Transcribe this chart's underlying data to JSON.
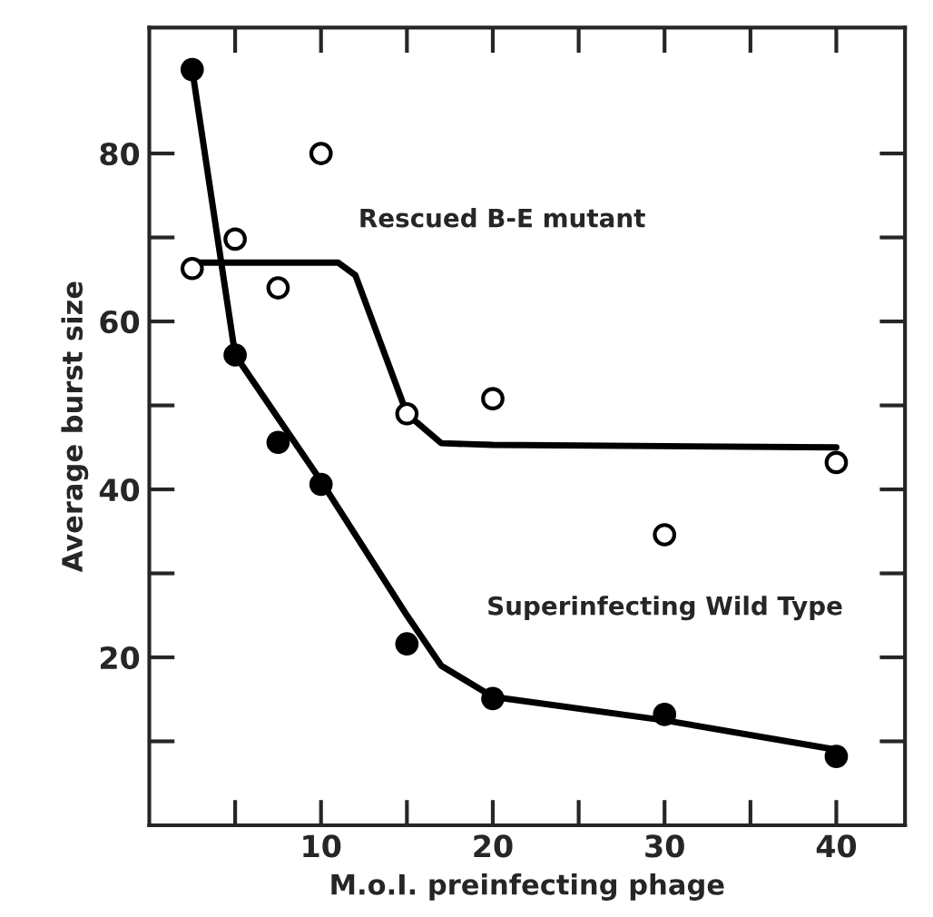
{
  "chart_data": {
    "type": "scatter",
    "xlabel": "M.o.I. preinfecting phage",
    "ylabel": "Average burst size",
    "xlim": [
      0,
      44
    ],
    "ylim": [
      0,
      95
    ],
    "xticks": [
      {
        "value": 5,
        "label": null
      },
      10,
      {
        "value": 15,
        "label": null
      },
      20,
      {
        "value": 25,
        "label": null
      },
      30,
      {
        "value": 35,
        "label": null
      },
      40
    ],
    "yticks": [
      {
        "value": 10,
        "label": null
      },
      20,
      {
        "value": 30,
        "label": null
      },
      40,
      {
        "value": 50,
        "label": null
      },
      60,
      {
        "value": 70,
        "label": null
      },
      80
    ],
    "grid": false,
    "legend": false,
    "series": [
      {
        "marker": "circle",
        "color": "#000000",
        "x": [
          2.5,
          5,
          7.5,
          10,
          15,
          20,
          30,
          40
        ],
        "values": [
          90,
          56,
          45.6,
          40.6,
          21.6,
          15.1,
          13.2,
          8.2
        ]
      },
      {
        "marker": "circle",
        "color": "#ffffff",
        "x": [
          2.5,
          5,
          7.5,
          10,
          15,
          20,
          30,
          40
        ],
        "values": [
          66.3,
          69.8,
          64,
          80,
          49,
          50.8,
          34.6,
          43.2
        ]
      },
      {
        "type": "line",
        "marker": "none",
        "name": "Superinfecting Wild Type",
        "color": "#000000",
        "x": [
          2.5,
          5,
          10,
          15,
          17,
          20,
          30,
          40
        ],
        "values": [
          90,
          56,
          41,
          25,
          19,
          15.3,
          12.5,
          9
        ]
      },
      {
        "type": "line",
        "marker": "none",
        "name": "Rescued B-E mutant",
        "color": "#000000",
        "x": [
          2.5,
          11,
          12,
          15,
          17,
          20,
          40
        ],
        "values": [
          67,
          67,
          65.5,
          49,
          45.5,
          45.3,
          45
        ]
      }
    ]
  }
}
